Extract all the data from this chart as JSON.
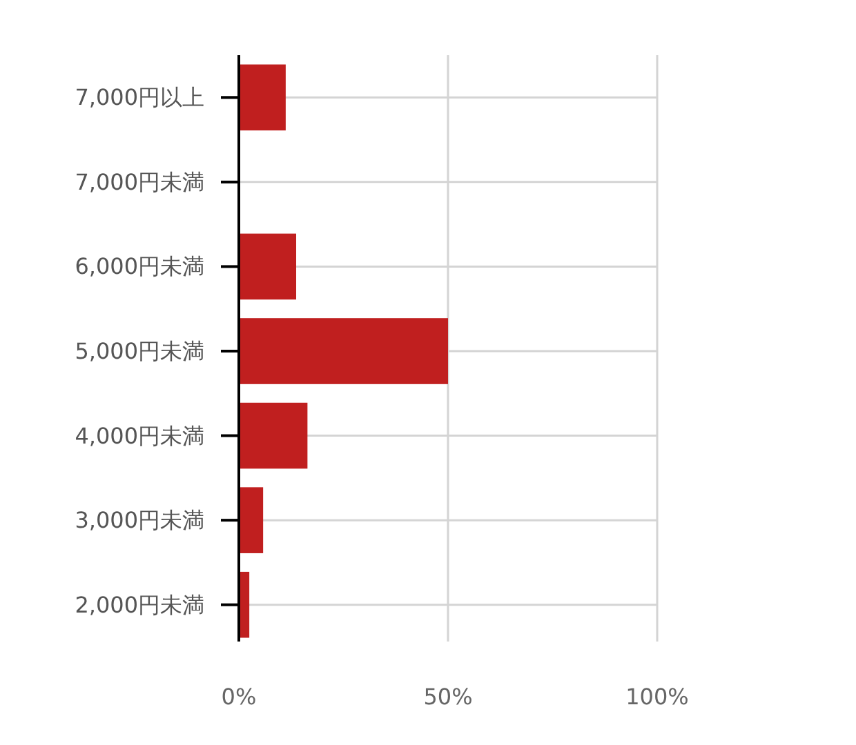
{
  "chart_data": {
    "type": "bar",
    "orientation": "horizontal",
    "categories": [
      "7,000円以上",
      "7,000円未満",
      "6,000円未満",
      "5,000円未満",
      "4,000円未満",
      "3,000円未満",
      "2,000円未満"
    ],
    "values": [
      11.2,
      0,
      13.7,
      50,
      16.4,
      5.8,
      2.5
    ],
    "color": "#c01f1f",
    "xlim": [
      0,
      100
    ],
    "xticks": [
      {
        "value": 0,
        "label": "0%"
      },
      {
        "value": 50,
        "label": "50%"
      },
      {
        "value": 100,
        "label": "100%"
      }
    ],
    "grid": true
  }
}
